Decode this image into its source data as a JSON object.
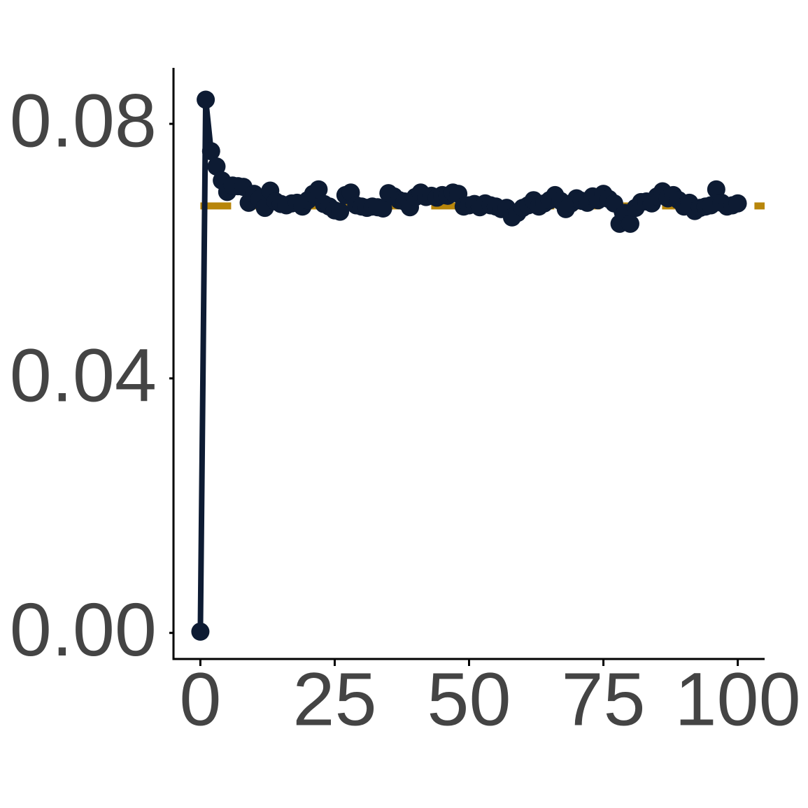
{
  "chart_data": {
    "type": "line",
    "x": [
      0,
      1,
      2,
      3,
      4,
      5,
      6,
      7,
      8,
      9,
      10,
      11,
      12,
      13,
      14,
      15,
      16,
      17,
      18,
      19,
      20,
      21,
      22,
      23,
      24,
      25,
      26,
      27,
      28,
      29,
      30,
      31,
      32,
      33,
      34,
      35,
      36,
      37,
      38,
      39,
      40,
      41,
      42,
      43,
      44,
      45,
      46,
      47,
      48,
      49,
      50,
      51,
      52,
      53,
      54,
      55,
      56,
      57,
      58,
      59,
      60,
      61,
      62,
      63,
      64,
      65,
      66,
      67,
      68,
      69,
      70,
      71,
      72,
      73,
      74,
      75,
      76,
      77,
      78,
      79,
      80,
      81,
      82,
      83,
      84,
      85,
      86,
      87,
      88,
      89,
      90,
      91,
      92,
      93,
      94,
      95,
      96,
      97,
      98,
      99,
      100
    ],
    "series": [
      {
        "color": "#0d1b33",
        "values": [
          0.0002,
          0.0838,
          0.0757,
          0.0733,
          0.0711,
          0.0693,
          0.0703,
          0.0702,
          0.0701,
          0.0676,
          0.069,
          0.0682,
          0.0668,
          0.0695,
          0.0678,
          0.0674,
          0.0672,
          0.0675,
          0.0676,
          0.067,
          0.068,
          0.069,
          0.0697,
          0.0674,
          0.067,
          0.0664,
          0.0662,
          0.0688,
          0.0692,
          0.0672,
          0.067,
          0.0668,
          0.067,
          0.0669,
          0.0667,
          0.0691,
          0.0686,
          0.068,
          0.0678,
          0.0669,
          0.0685,
          0.0692,
          0.0685,
          0.0687,
          0.0684,
          0.0688,
          0.0687,
          0.0692,
          0.069,
          0.067,
          0.0672,
          0.0674,
          0.0669,
          0.0675,
          0.0672,
          0.067,
          0.0666,
          0.0668,
          0.0653,
          0.066,
          0.0668,
          0.0672,
          0.068,
          0.067,
          0.0675,
          0.068,
          0.0688,
          0.0679,
          0.0666,
          0.0675,
          0.0683,
          0.0679,
          0.0676,
          0.0686,
          0.068,
          0.069,
          0.0682,
          0.0675,
          0.0643,
          0.066,
          0.0643,
          0.0668,
          0.0677,
          0.0678,
          0.0675,
          0.0686,
          0.0694,
          0.0683,
          0.0688,
          0.068,
          0.067,
          0.0676,
          0.0663,
          0.0668,
          0.067,
          0.0672,
          0.0697,
          0.0676,
          0.067,
          0.0672,
          0.0675
        ]
      }
    ],
    "hline": {
      "value": 0.0671,
      "color": "#b8860b"
    },
    "xlim": [
      -5,
      105
    ],
    "ylim": [
      -0.0041,
      0.0888
    ],
    "xticks": [
      0,
      25,
      50,
      75,
      100
    ],
    "yticks": [
      {
        "value": 0,
        "label": "0.00"
      },
      {
        "value": 0.04,
        "label": "0.04"
      },
      {
        "value": 0.08,
        "label": "0.08"
      }
    ]
  }
}
